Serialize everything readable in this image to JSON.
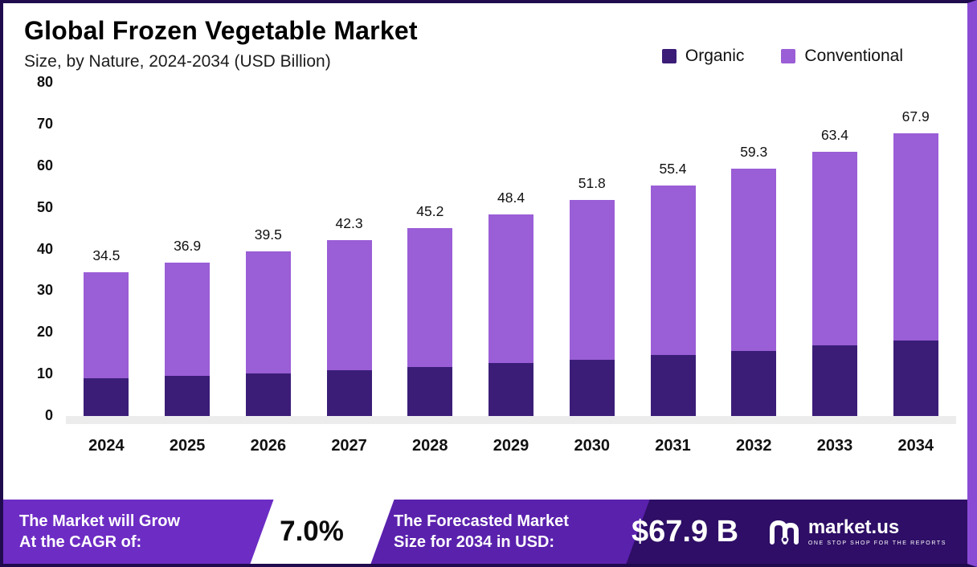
{
  "page": {
    "title": "Global Frozen Vegetable Market",
    "subtitle": "Size, by  Nature, 2024-2034 (USD Billion)"
  },
  "colors": {
    "organic": "#3b1d78",
    "conventional": "#9a5ed6",
    "banner_base": "#2e0e66"
  },
  "legend": {
    "items": [
      {
        "label": "Organic",
        "color": "#3b1d78"
      },
      {
        "label": "Conventional",
        "color": "#9a5ed6"
      }
    ]
  },
  "chart_data": {
    "type": "bar",
    "stacked": true,
    "title": "Global Frozen Vegetable Market Size, by Nature, 2024-2034 (USD Billion)",
    "categories": [
      "2024",
      "2025",
      "2026",
      "2027",
      "2028",
      "2029",
      "2030",
      "2031",
      "2032",
      "2033",
      "2034"
    ],
    "series": [
      {
        "name": "Organic",
        "color": "#3b1d78",
        "values": [
          9.0,
          9.7,
          10.3,
          11.0,
          11.8,
          12.8,
          13.5,
          14.6,
          15.7,
          16.9,
          18.2
        ]
      },
      {
        "name": "Conventional",
        "color": "#9a5ed6",
        "values": [
          25.5,
          27.2,
          29.2,
          31.3,
          33.4,
          35.6,
          38.3,
          40.8,
          43.6,
          46.5,
          49.7
        ]
      }
    ],
    "totals": [
      "34.5",
      "36.9",
      "39.5",
      "42.3",
      "45.2",
      "48.4",
      "51.8",
      "55.4",
      "59.3",
      "63.4",
      "67.9"
    ],
    "xlabel": "",
    "ylabel": "",
    "ylim": [
      0,
      80
    ],
    "yticks": [
      0,
      10,
      20,
      30,
      40,
      50,
      60,
      70,
      80
    ],
    "grid": false,
    "legend_position": "top-right"
  },
  "banner": {
    "cagr_label_line1": "The Market will Grow",
    "cagr_label_line2": "At the CAGR of:",
    "cagr_value": "7.0%",
    "forecast_label_line1": "The Forecasted Market",
    "forecast_label_line2": "Size for 2034 in USD:",
    "forecast_value": "$67.9 B",
    "brand": "market.us",
    "brand_tagline": "ONE STOP SHOP FOR THE REPORTS"
  }
}
